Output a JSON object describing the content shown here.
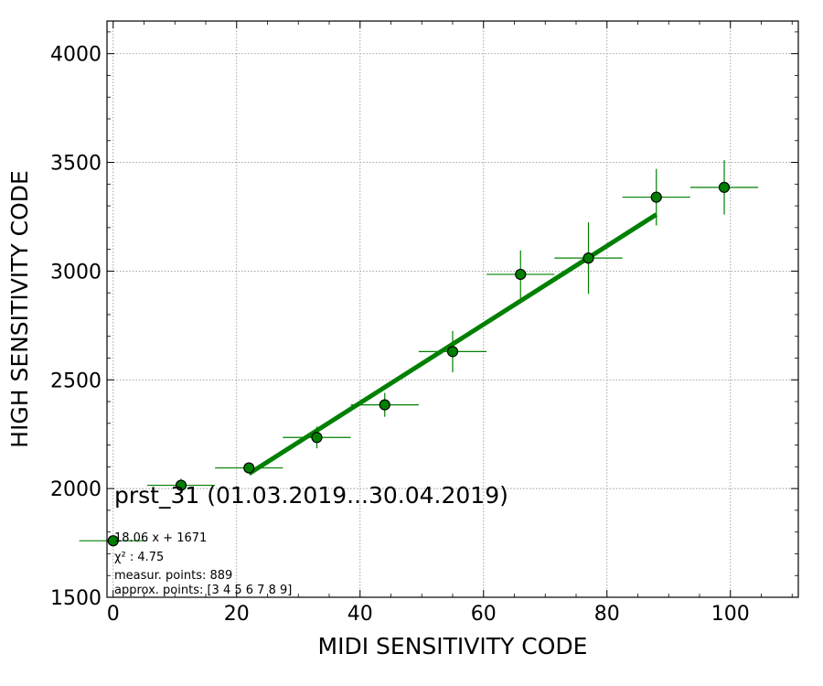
{
  "chart_data": {
    "type": "scatter",
    "title": "prst_31 (01.03.2019...30.04.2019)",
    "xlabel": "MIDI SENSITIVITY CODE",
    "ylabel": "HIGH SENSITIVITY CODE",
    "xlim": [
      -1,
      111
    ],
    "ylim": [
      1500,
      4150
    ],
    "xticks": [
      0,
      20,
      40,
      60,
      80,
      100
    ],
    "yticks": [
      1500,
      2000,
      2500,
      3000,
      3500,
      4000
    ],
    "grid": true,
    "colors": {
      "marker": "#008000",
      "fit": "#008000",
      "grid": "#999999"
    },
    "points": [
      {
        "x": 0,
        "y": 1760,
        "xerr": 5.5,
        "yerr": 0
      },
      {
        "x": 11,
        "y": 2015,
        "xerr": 5.5,
        "yerr": 30
      },
      {
        "x": 22,
        "y": 2095,
        "xerr": 5.5,
        "yerr": 25
      },
      {
        "x": 33,
        "y": 2235,
        "xerr": 5.5,
        "yerr": 50
      },
      {
        "x": 44,
        "y": 2385,
        "xerr": 5.5,
        "yerr": 55
      },
      {
        "x": 55,
        "y": 2630,
        "xerr": 5.5,
        "yerr": 95
      },
      {
        "x": 66,
        "y": 2985,
        "xerr": 5.5,
        "yerr": 110
      },
      {
        "x": 77,
        "y": 3060,
        "xerr": 5.5,
        "yerr": 165
      },
      {
        "x": 88,
        "y": 3340,
        "xerr": 5.5,
        "yerr": 130
      },
      {
        "x": 99,
        "y": 3385,
        "xerr": 5.5,
        "yerr": 125
      }
    ],
    "fit": {
      "slope": 18.06,
      "intercept": 1671,
      "x_range": [
        22,
        88
      ]
    },
    "annotations": {
      "equation": "18.06 x + 1671",
      "chi2": "χ² : 4.75",
      "measured": "measur. points: 889",
      "approx": "approx. points: [3 4 5 6 7 8 9]"
    }
  }
}
